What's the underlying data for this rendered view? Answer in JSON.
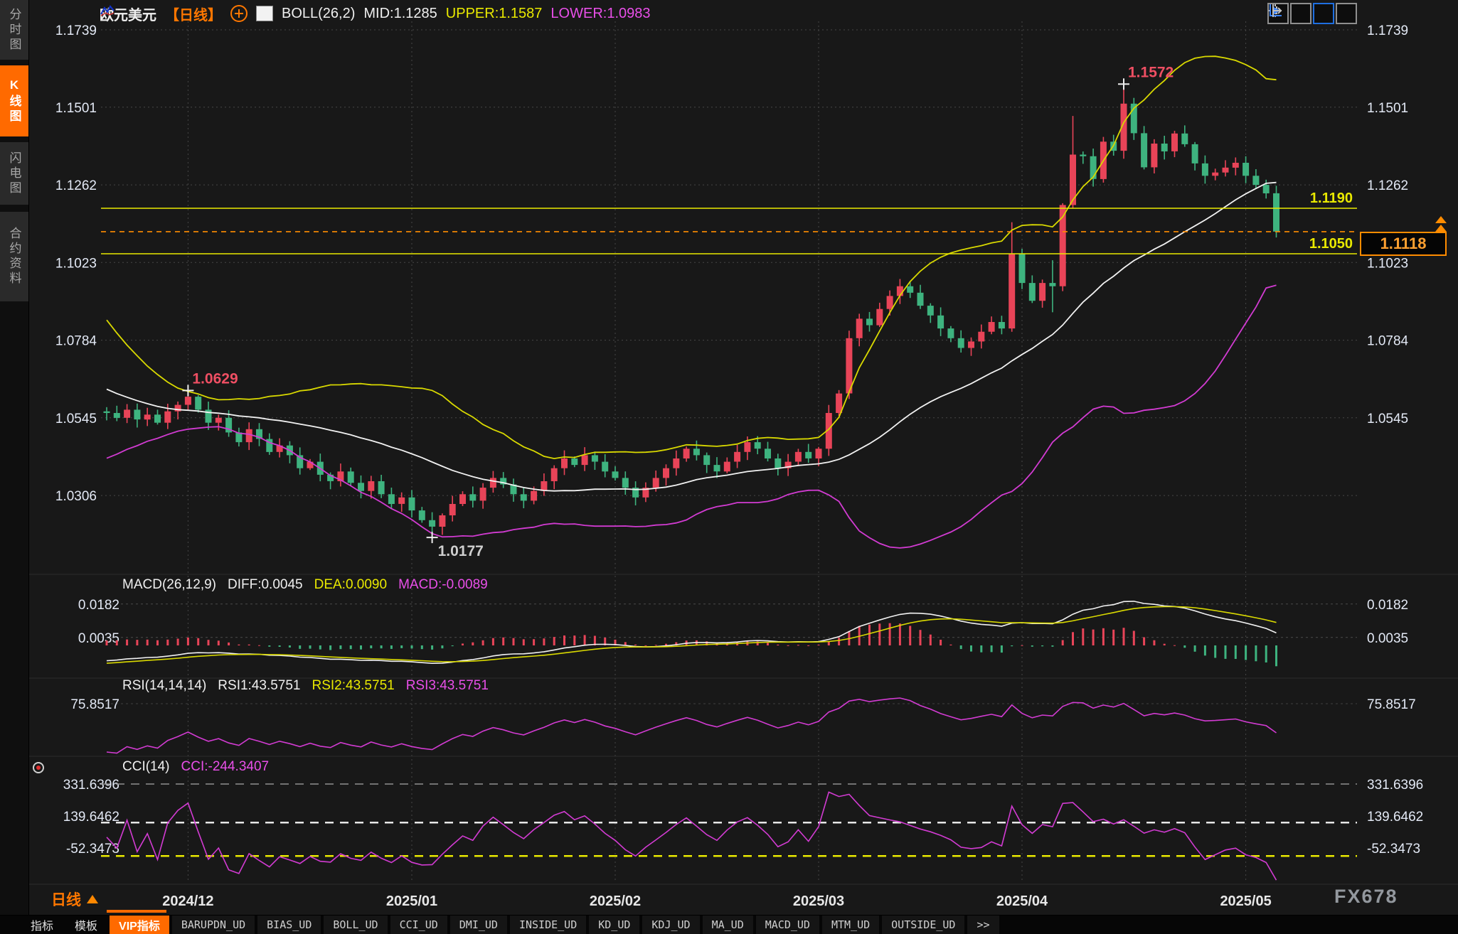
{
  "header": {
    "symbol": "欧元美元",
    "timeframe_tag": "【日线】",
    "boll": "BOLL(26,2)",
    "mid": "MID:1.1285",
    "upper": "UPPER:1.1587",
    "lower": "LOWER:1.0983"
  },
  "sidebar": {
    "items": [
      {
        "label": "分时图",
        "active": false
      },
      {
        "label": "K线图",
        "active": true
      },
      {
        "label": "闪电图",
        "active": false
      },
      {
        "label": "合约资料",
        "active": false
      }
    ]
  },
  "panes": {
    "macd": {
      "title": "MACD(26,12,9)",
      "v1": "DIFF:0.0045",
      "v2": "DEA:0.0090",
      "v3": "MACD:-0.0089"
    },
    "rsi": {
      "title": "RSI(14,14,14)",
      "v1": "RSI1:43.5751",
      "v2": "RSI2:43.5751",
      "v3": "RSI3:43.5751"
    },
    "cci": {
      "title": "CCI(14)",
      "v1": "CCI:-244.3407"
    }
  },
  "axes": {
    "price_left": [
      "1.1739",
      "1.1501",
      "1.1262",
      "1.1023",
      "1.0784",
      "1.0545",
      "1.0306"
    ],
    "price_right": [
      "1.1739",
      "1.1501",
      "1.1262",
      "1.1023",
      "1.0784",
      "1.0545"
    ],
    "macd_ticks": [
      "0.0182",
      "0.0035"
    ],
    "rsi_ticks": [
      "75.8517"
    ],
    "cci_ticks": [
      "331.6396",
      "139.6462",
      "-52.3473"
    ],
    "months": [
      "2024/12",
      "2025/01",
      "2025/02",
      "2025/03",
      "2025/04",
      "2025/05"
    ]
  },
  "levels": {
    "alert_labels": [
      "1.1190",
      "1.1050"
    ],
    "current": "1.1118"
  },
  "timeline": {
    "timeframe": "日线"
  },
  "watermark": "FX678",
  "tabbar": {
    "tabs": [
      "指标",
      "模板",
      "VIP指标",
      "BARUPDN_UD",
      "BIAS_UD",
      "BOLL_UD",
      "CCI_UD",
      "DMI_UD",
      "INSIDE_UD",
      "KD_UD",
      "KDJ_UD",
      "MA_UD",
      "MACD_UD",
      "MTM_UD",
      "OUTSIDE_UD",
      ">>"
    ],
    "active": "VIP指标"
  },
  "chart_data": {
    "type": "candlestick",
    "symbol": "EURUSD 欧元美元",
    "interval": "daily 日线",
    "ylim": [
      1.0306,
      1.1739
    ],
    "price_gridlines": [
      1.1739,
      1.1501,
      1.1262,
      1.1023,
      1.0784,
      1.0545,
      1.0306
    ],
    "month_labels": [
      "2024/12",
      "2025/01",
      "2025/02",
      "2025/03",
      "2025/04",
      "2025/05"
    ],
    "month_candle_index": [
      8,
      30,
      50,
      70,
      90,
      112
    ],
    "pre_closes": [
      1.094,
      1.09,
      1.086,
      1.082,
      1.079,
      1.075,
      1.072,
      1.069,
      1.066,
      1.063,
      1.064,
      1.061,
      1.059,
      1.06,
      1.058,
      1.056,
      1.057,
      1.055,
      1.056,
      1.054,
      1.055,
      1.053,
      1.054,
      1.0555,
      1.0545,
      1.0565
    ],
    "closes": [
      1.056,
      1.0545,
      1.057,
      1.054,
      1.0555,
      1.053,
      1.0565,
      1.0585,
      1.061,
      1.057,
      1.053,
      1.0545,
      1.05,
      1.047,
      1.051,
      1.048,
      1.044,
      1.046,
      1.043,
      1.039,
      1.041,
      1.037,
      1.035,
      1.038,
      1.0345,
      1.032,
      1.035,
      1.031,
      1.028,
      1.03,
      1.026,
      1.023,
      1.021,
      1.0245,
      1.028,
      1.031,
      1.029,
      1.033,
      1.036,
      1.034,
      1.031,
      1.029,
      1.032,
      1.035,
      1.039,
      1.042,
      1.04,
      1.043,
      1.041,
      1.038,
      1.036,
      1.033,
      1.03,
      1.033,
      1.036,
      1.039,
      1.042,
      1.045,
      1.043,
      1.04,
      1.038,
      1.041,
      1.044,
      1.047,
      1.045,
      1.042,
      1.039,
      1.041,
      1.044,
      1.042,
      1.045,
      1.056,
      1.062,
      1.079,
      1.085,
      1.083,
      1.088,
      1.092,
      1.095,
      1.093,
      1.089,
      1.086,
      1.082,
      1.079,
      1.076,
      1.078,
      1.081,
      1.084,
      1.082,
      1.105,
      1.096,
      1.0905,
      1.096,
      1.095,
      1.12,
      1.1355,
      1.135,
      1.128,
      1.1395,
      1.1367,
      1.1512,
      1.1421,
      1.1316,
      1.1389,
      1.1365,
      1.142,
      1.1387,
      1.1328,
      1.129,
      1.13,
      1.1315,
      1.133,
      1.129,
      1.1262,
      1.1236,
      1.1118
    ],
    "wick_overrides": {
      "8": {
        "high": 1.0629
      },
      "32": {
        "low": 1.0177
      },
      "89": {
        "high": 1.1147,
        "low": 1.081
      },
      "93": {
        "high": 1.103,
        "low": 1.087
      },
      "95": {
        "high": 1.1474
      },
      "100": {
        "high": 1.1572
      },
      "115": {
        "low": 1.11
      }
    },
    "boll": {
      "period": 26,
      "width": 2,
      "mid": 1.1285,
      "upper": 1.1587,
      "lower": 1.0983
    },
    "macd": {
      "fast": 12,
      "slow": 26,
      "signal": 9,
      "diff": 0.0045,
      "dea": 0.009,
      "macd": -0.0089,
      "ticks": [
        0.0182,
        0.0035
      ]
    },
    "rsi": {
      "periods": [
        14,
        14,
        14
      ],
      "rsi1": 43.5751,
      "rsi2": 43.5751,
      "rsi3": 43.5751,
      "ticks": [
        75.8517
      ]
    },
    "cci": {
      "period": 14,
      "cci": -244.3407,
      "ticks": [
        331.6396,
        139.6462,
        -52.3473
      ],
      "guides": [
        331.6396,
        100,
        -100
      ]
    },
    "alert_levels": [
      1.119,
      1.105
    ],
    "current_price": 1.1118,
    "annotations": [
      {
        "text": "1.1572",
        "candle_index": 100,
        "price": 1.1572,
        "color": "#ef4f63",
        "position": "above"
      },
      {
        "text": "1.0629",
        "candle_index": 8,
        "price": 1.0629,
        "color": "#ef4f63",
        "position": "above"
      },
      {
        "text": "1.0177",
        "candle_index": 32,
        "price": 1.0177,
        "color": "#cfcfcf",
        "position": "below"
      }
    ],
    "colors": {
      "up": "#e84458",
      "down": "#3eb37f",
      "boll_mid": "#f2f2f2",
      "boll_upper": "#d9d900",
      "boll_lower": "#d23bd2",
      "macd_diff": "#f2f2f2",
      "macd_dea": "#d9d900",
      "hist_pos": "#e84458",
      "hist_neg": "#3eb37f",
      "rsi_line": "#d23bd2",
      "cci_line": "#d23bd2",
      "alert": "#e9e900",
      "current": "#ff8c00",
      "accent": "#ff6a00",
      "axis_text": "#e3e9f5"
    }
  }
}
